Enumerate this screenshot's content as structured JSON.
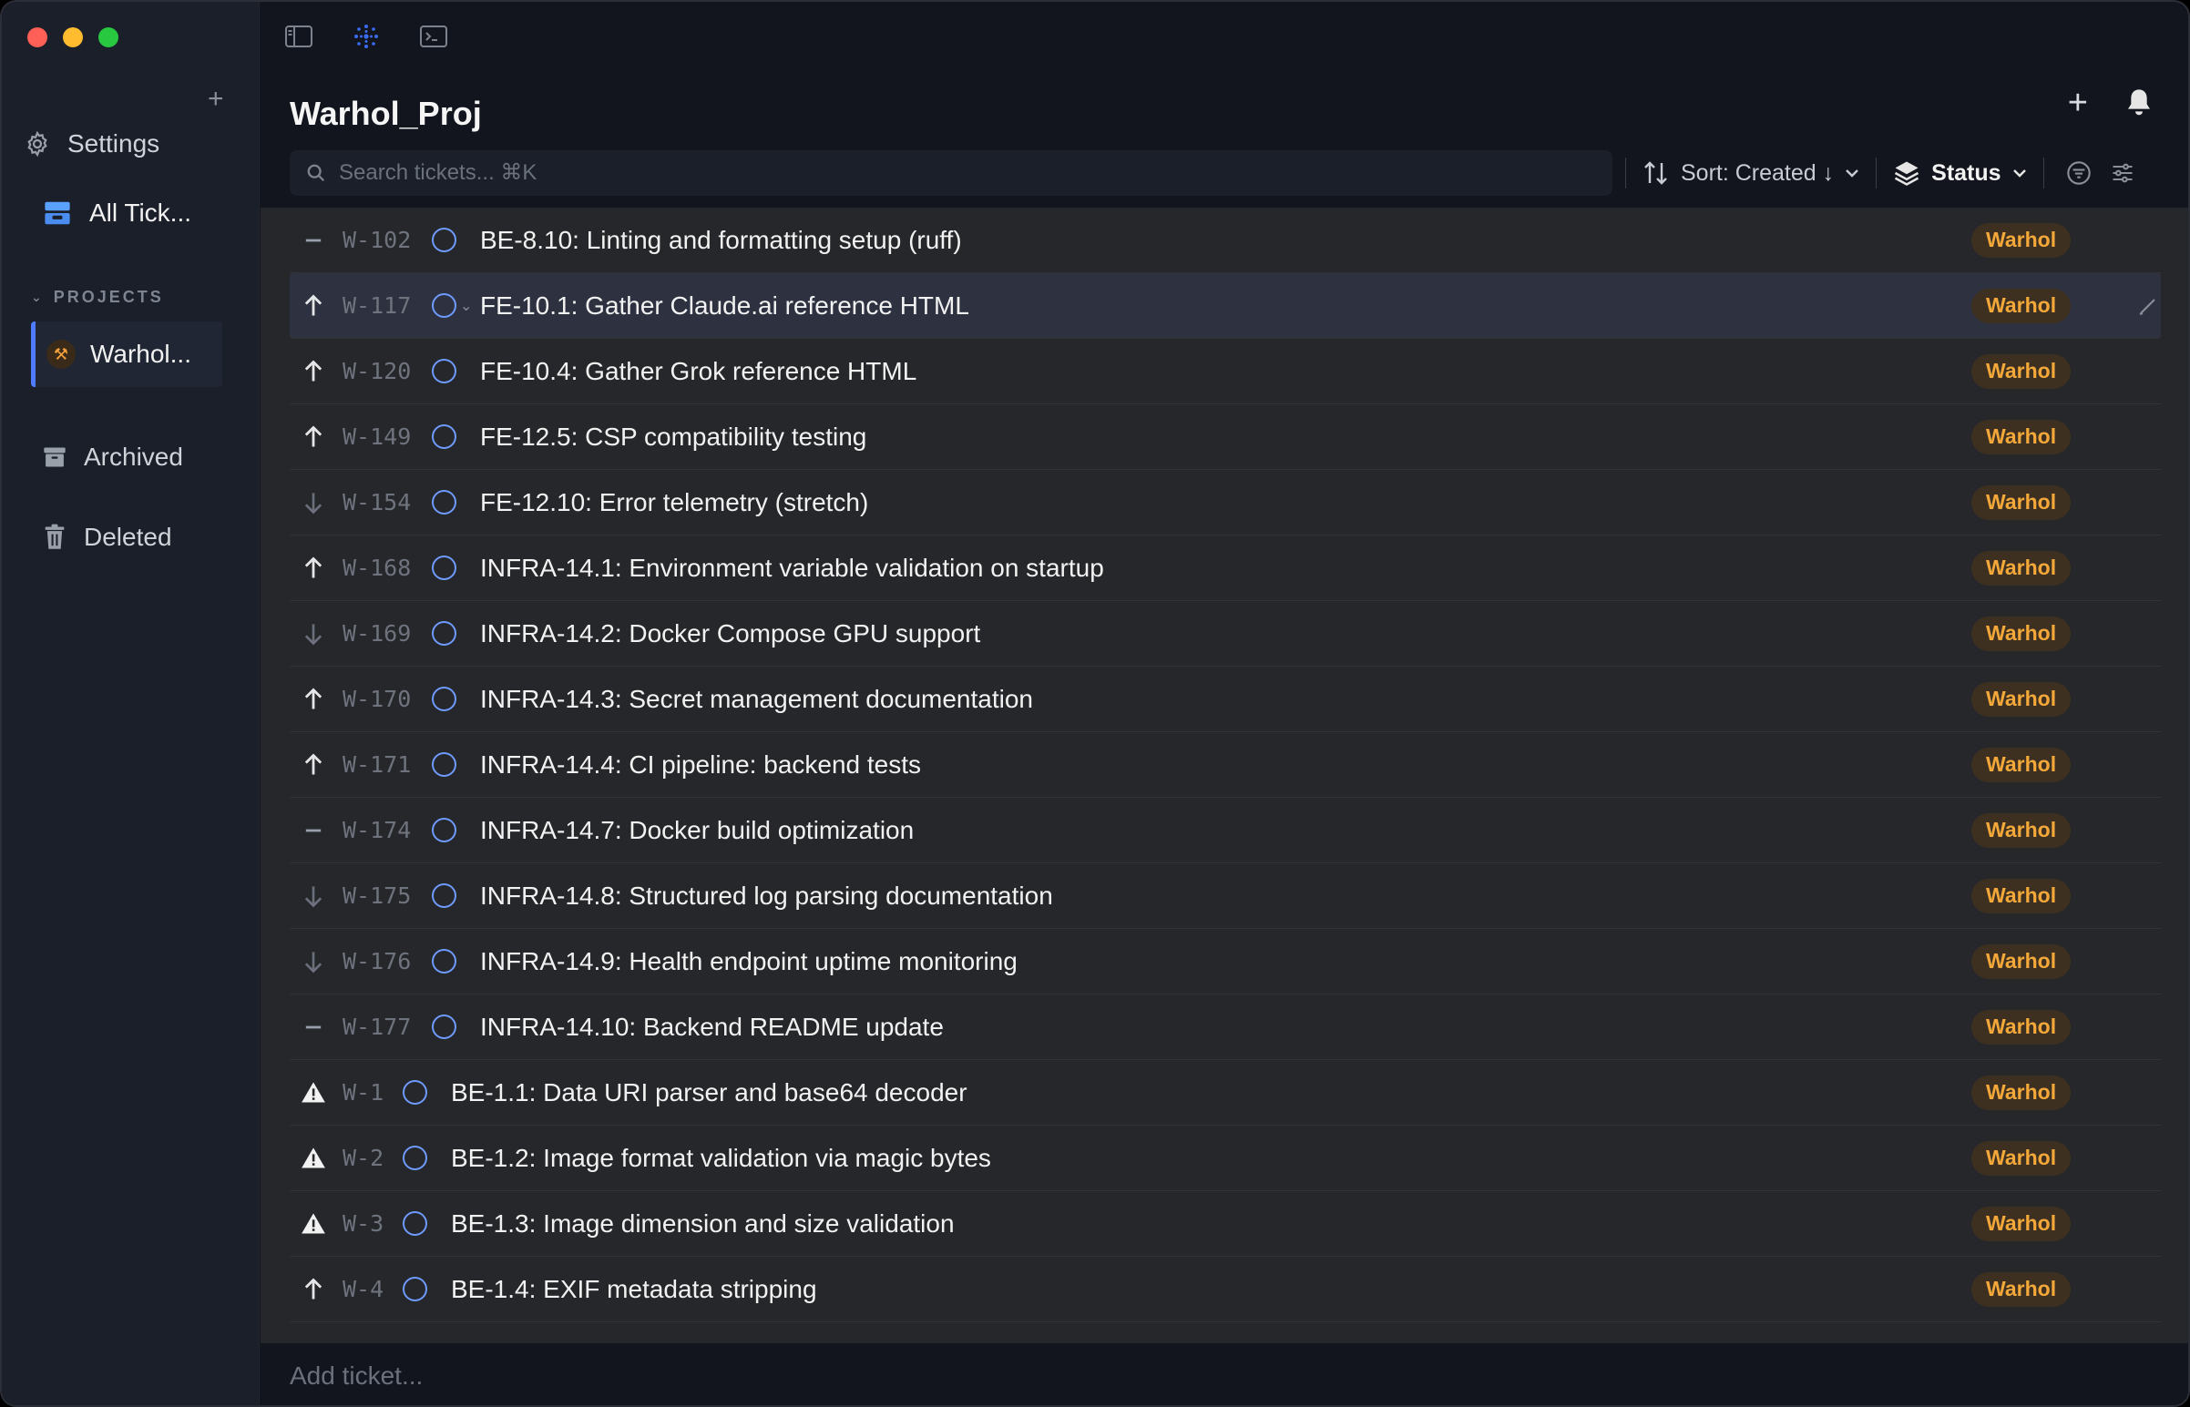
{
  "sidebar": {
    "settings_label": "Settings",
    "all_tickets_label": "All Tick...",
    "projects_header": "PROJECTS",
    "project_name": "Warhol...",
    "archived_label": "Archived",
    "deleted_label": "Deleted"
  },
  "header": {
    "title": "Warhol_Proj"
  },
  "toolbar": {
    "search_placeholder": "Search tickets... ⌘K",
    "sort_label": "Sort: Created ↓",
    "status_label": "Status"
  },
  "tickets": [
    {
      "id": "W-102",
      "title": "BE-8.10: Linting and formatting setup (ruff)",
      "priority": "none",
      "dots": [
        "#6b7280",
        "#38bdf8"
      ],
      "tag": "Warhol"
    },
    {
      "id": "W-117",
      "title": "FE-10.1: Gather Claude.ai reference HTML",
      "priority": "high",
      "dots": [
        "#2dd4bf",
        "#4ade80"
      ],
      "tag": "Warhol"
    },
    {
      "id": "W-120",
      "title": "FE-10.4: Gather Grok reference HTML",
      "priority": "high",
      "dots": [
        "#2dd4bf",
        "#4ade80"
      ],
      "tag": "Warhol"
    },
    {
      "id": "W-149",
      "title": "FE-12.5: CSP compatibility testing",
      "priority": "high",
      "dots": [
        "#facc15",
        "#2dd4bf"
      ],
      "tag": "Warhol"
    },
    {
      "id": "W-154",
      "title": "FE-12.10: Error telemetry (stretch)",
      "priority": "low",
      "dots": [
        "#facc15",
        "#2dd4bf"
      ],
      "tag": "Warhol"
    },
    {
      "id": "W-168",
      "title": "INFRA-14.1: Environment variable validation on startup",
      "priority": "high",
      "dots": [
        "#fb923c"
      ],
      "tag": "Warhol"
    },
    {
      "id": "W-169",
      "title": "INFRA-14.2: Docker Compose GPU support",
      "priority": "low",
      "dots": [
        "#fb923c"
      ],
      "tag": "Warhol"
    },
    {
      "id": "W-170",
      "title": "INFRA-14.3: Secret management documentation",
      "priority": "high",
      "dots": [
        "#fb923c"
      ],
      "tag": "Warhol"
    },
    {
      "id": "W-171",
      "title": "INFRA-14.4: CI pipeline: backend tests",
      "priority": "high",
      "dots": [
        "#fb923c"
      ],
      "tag": "Warhol"
    },
    {
      "id": "W-174",
      "title": "INFRA-14.7: Docker build optimization",
      "priority": "none",
      "dots": [
        "#fb923c"
      ],
      "tag": "Warhol"
    },
    {
      "id": "W-175",
      "title": "INFRA-14.8: Structured log parsing documentation",
      "priority": "low",
      "dots": [
        "#fb923c"
      ],
      "tag": "Warhol"
    },
    {
      "id": "W-176",
      "title": "INFRA-14.9: Health endpoint uptime monitoring",
      "priority": "low",
      "dots": [
        "#fb923c"
      ],
      "tag": "Warhol"
    },
    {
      "id": "W-177",
      "title": "INFRA-14.10: Backend README update",
      "priority": "none",
      "dots": [
        "#fb923c"
      ],
      "tag": "Warhol"
    },
    {
      "id": "W-1",
      "title": "BE-1.1: Data URI parser and base64 decoder",
      "priority": "urgent",
      "dots": [
        "#6b7280",
        "#ef4444"
      ],
      "tag": "Warhol"
    },
    {
      "id": "W-2",
      "title": "BE-1.2: Image format validation via magic bytes",
      "priority": "urgent",
      "dots": [
        "#6b7280",
        "#ef4444"
      ],
      "tag": "Warhol"
    },
    {
      "id": "W-3",
      "title": "BE-1.3: Image dimension and size validation",
      "priority": "urgent",
      "dots": [
        "#6b7280",
        "#ef4444"
      ],
      "tag": "Warhol"
    },
    {
      "id": "W-4",
      "title": "BE-1.4: EXIF metadata stripping",
      "priority": "high",
      "dots": [
        "#6b7280",
        "#ef4444"
      ],
      "tag": "Warhol"
    }
  ],
  "addbar": {
    "placeholder": "Add ticket..."
  },
  "colors": {
    "accent": "#4e7bff",
    "tag_text": "#f4a83a",
    "status_circle": "#6e9bff"
  },
  "icons": {
    "traffic": [
      "close-dot",
      "minimize-dot",
      "maximize-dot"
    ],
    "topbar": [
      "sidebar-toggle-icon",
      "network-icon",
      "terminal-icon"
    ]
  }
}
